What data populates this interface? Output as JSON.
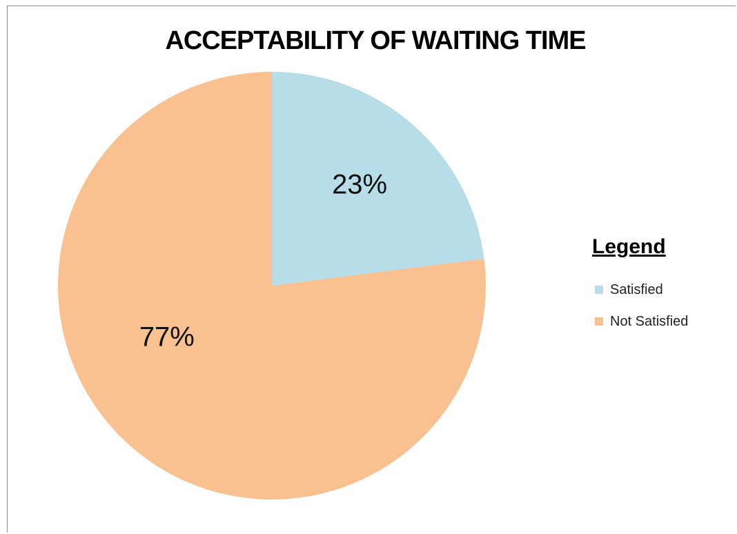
{
  "chart_data": {
    "type": "pie",
    "title": "ACCEPTABILITY OF WAITING TIME",
    "categories": [
      "Satisfied",
      "Not Satisfied"
    ],
    "values": [
      23,
      77
    ],
    "data_labels": [
      "23%",
      "77%"
    ],
    "colors": [
      "#b7dde8",
      "#f9c090"
    ],
    "legend": {
      "title": "Legend",
      "placement": "right",
      "entries": [
        "Satisfied",
        "Not Satisfied"
      ]
    }
  }
}
